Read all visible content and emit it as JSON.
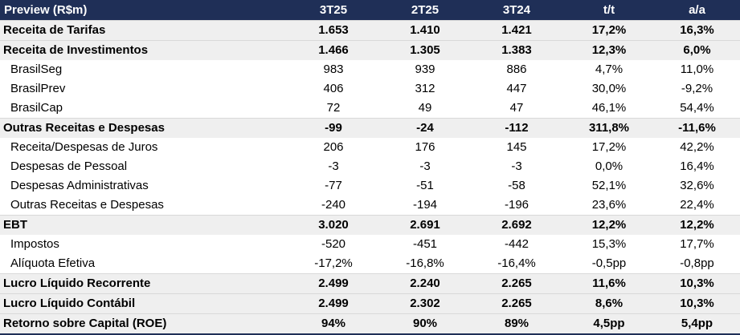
{
  "header": {
    "label": "Preview (R$m)",
    "columns": [
      "3T25",
      "2T25",
      "3T24",
      "t/t",
      "a/a"
    ]
  },
  "rows": [
    {
      "label": "Receita de Tarifas",
      "bold": true,
      "values": [
        "1.653",
        "1.410",
        "1.421",
        "17,2%",
        "16,3%"
      ]
    },
    {
      "label": "Receita de Investimentos",
      "bold": true,
      "values": [
        "1.466",
        "1.305",
        "1.383",
        "12,3%",
        "6,0%"
      ]
    },
    {
      "label": "BrasilSeg",
      "bold": false,
      "values": [
        "983",
        "939",
        "886",
        "4,7%",
        "11,0%"
      ]
    },
    {
      "label": "BrasilPrev",
      "bold": false,
      "values": [
        "406",
        "312",
        "447",
        "30,0%",
        "-9,2%"
      ]
    },
    {
      "label": "BrasilCap",
      "bold": false,
      "values": [
        "72",
        "49",
        "47",
        "46,1%",
        "54,4%"
      ]
    },
    {
      "label": "Outras Receitas e Despesas",
      "bold": true,
      "values": [
        "-99",
        "-24",
        "-112",
        "311,8%",
        "-11,6%"
      ]
    },
    {
      "label": "Receita/Despesas de Juros",
      "bold": false,
      "values": [
        "206",
        "176",
        "145",
        "17,2%",
        "42,2%"
      ]
    },
    {
      "label": "Despesas de Pessoal",
      "bold": false,
      "values": [
        "-3",
        "-3",
        "-3",
        "0,0%",
        "16,4%"
      ]
    },
    {
      "label": "Despesas Administrativas",
      "bold": false,
      "values": [
        "-77",
        "-51",
        "-58",
        "52,1%",
        "32,6%"
      ]
    },
    {
      "label": "Outras Receitas e Despesas",
      "bold": false,
      "values": [
        "-240",
        "-194",
        "-196",
        "23,6%",
        "22,4%"
      ]
    },
    {
      "label": "EBT",
      "bold": true,
      "values": [
        "3.020",
        "2.691",
        "2.692",
        "12,2%",
        "12,2%"
      ]
    },
    {
      "label": "Impostos",
      "bold": false,
      "values": [
        "-520",
        "-451",
        "-442",
        "15,3%",
        "17,7%"
      ]
    },
    {
      "label": "Alíquota Efetiva",
      "bold": false,
      "values": [
        "-17,2%",
        "-16,8%",
        "-16,4%",
        "-0,5pp",
        "-0,8pp"
      ]
    },
    {
      "label": "Lucro Líquido Recorrente",
      "bold": true,
      "values": [
        "2.499",
        "2.240",
        "2.265",
        "11,6%",
        "10,3%"
      ]
    },
    {
      "label": "Lucro Líquido Contábil",
      "bold": true,
      "values": [
        "2.499",
        "2.302",
        "2.265",
        "8,6%",
        "10,3%"
      ]
    },
    {
      "label": "Retorno sobre Capital (ROE)",
      "bold": true,
      "values": [
        "94%",
        "90%",
        "89%",
        "4,5pp",
        "5,4pp"
      ]
    }
  ]
}
